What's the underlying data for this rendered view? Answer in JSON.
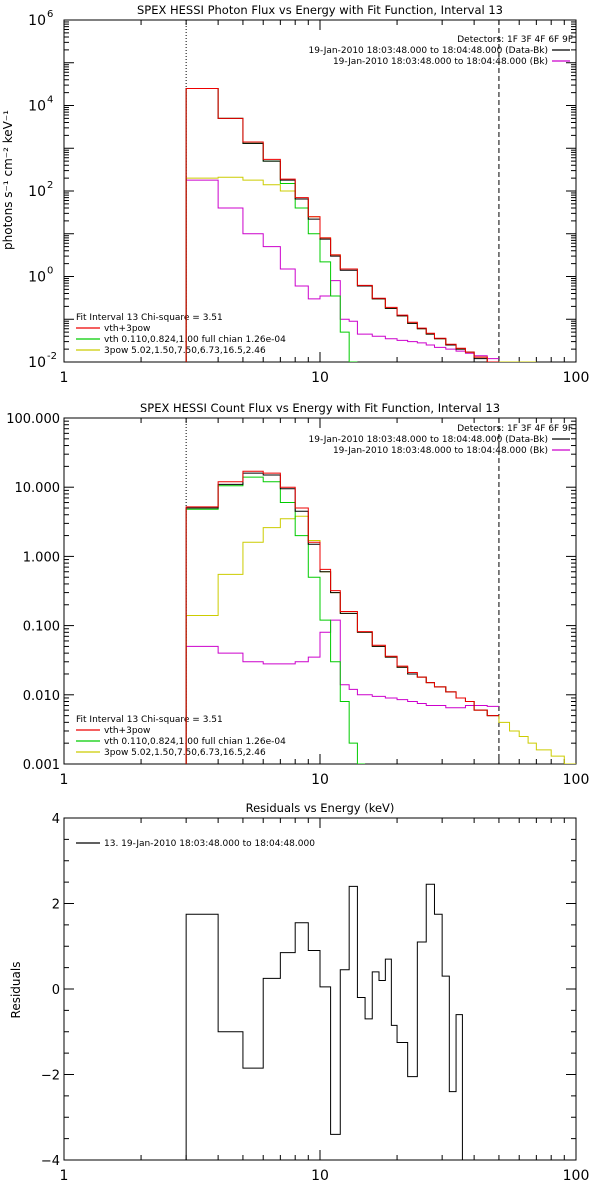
{
  "chart_data": [
    {
      "type": "line",
      "title": "SPEX HESSI Photon Flux vs Energy with Fit Function, Interval 13",
      "ylabel": "photons s⁻¹ cm⁻² keV⁻¹",
      "xlabel": "",
      "x_scale": "log",
      "y_scale": "log",
      "xlim": [
        1,
        100
      ],
      "ylim": [
        0.01,
        1000000
      ],
      "x_ticks": [
        "1",
        "10",
        "100"
      ],
      "y_ticks": [
        {
          "value": 0.01,
          "base": "10",
          "exp": "-2"
        },
        {
          "value": 1,
          "base": "10",
          "exp": "0"
        },
        {
          "value": 100,
          "base": "10",
          "exp": "2"
        },
        {
          "value": 10000,
          "base": "10",
          "exp": "4"
        },
        {
          "value": 1000000,
          "base": "10",
          "exp": "6"
        }
      ],
      "legend_top_right": {
        "heading": "Detectors: 1F 3F 4F 6F 9F",
        "entries": [
          {
            "text": "19-Jan-2010 18:03:48.000 to 18:04:48.000 (Data-Bk)",
            "color": "#000000"
          },
          {
            "text": "19-Jan-2010 18:03:48.000 to 18:04:48.000 (Bk)",
            "color": "#cc00cc"
          }
        ]
      },
      "legend_bottom_left": {
        "heading": "Fit Interval 13    Chi-square = 3.51",
        "entries": [
          {
            "text": "vth+3pow",
            "color": "#ee0000"
          },
          {
            "text": "vth 0.110,0.824,1.00  full chian 1.26e-04",
            "color": "#00cc00"
          },
          {
            "text": "3pow 5.02,1.50,7.50,6.73,16.5,2.46",
            "color": "#cccc00"
          }
        ]
      },
      "vlines": [
        {
          "x": 3,
          "style": "dotted"
        },
        {
          "x": 50,
          "style": "dashed"
        }
      ],
      "series": [
        {
          "color": "#000000",
          "edges": [
            3,
            4,
            5,
            6,
            7,
            8,
            9,
            10,
            11,
            12,
            14,
            16,
            18,
            20,
            22,
            24,
            26,
            28,
            31,
            34,
            37,
            40,
            45,
            50
          ],
          "values": [
            25000,
            5000,
            1300,
            500,
            180,
            65,
            22,
            7.5,
            3,
            1.4,
            0.6,
            0.3,
            0.18,
            0.12,
            0.08,
            0.06,
            0.045,
            0.035,
            0.025,
            0.02,
            0.017,
            0.012,
            0.009
          ]
        },
        {
          "color": "#ee0000",
          "edges": [
            3,
            4,
            5,
            6,
            7,
            8,
            9,
            10,
            11,
            12,
            14,
            16,
            18,
            20,
            22,
            24,
            26,
            28,
            31,
            34,
            37,
            40,
            45,
            50
          ],
          "values": [
            25000,
            5000,
            1400,
            550,
            190,
            70,
            25,
            8,
            3.2,
            1.5,
            0.62,
            0.31,
            0.19,
            0.125,
            0.085,
            0.062,
            0.047,
            0.036,
            0.026,
            0.021,
            0.017,
            0.013,
            0.01
          ]
        },
        {
          "color": "#00cc00",
          "edges": [
            3,
            4,
            5,
            6,
            7,
            8,
            9,
            10,
            11,
            12,
            13,
            14
          ],
          "values": [
            25000,
            5000,
            1300,
            500,
            150,
            40,
            10,
            2.2,
            0.35,
            0.05,
            0.006
          ]
        },
        {
          "color": "#cccc00",
          "edges": [
            3,
            4,
            5,
            6,
            7,
            8,
            9,
            10,
            11,
            12,
            14,
            16,
            18,
            20,
            22,
            24,
            26,
            28,
            31,
            34,
            37,
            40,
            45,
            50,
            55,
            60,
            65,
            70
          ],
          "values": [
            200,
            210,
            180,
            140,
            100,
            65,
            25,
            8,
            3.2,
            1.5,
            0.6,
            0.3,
            0.18,
            0.12,
            0.08,
            0.06,
            0.045,
            0.035,
            0.025,
            0.02,
            0.017,
            0.013,
            0.01,
            0.008,
            0.0065,
            0.0055,
            0.0045
          ]
        },
        {
          "color": "#cc00cc",
          "edges": [
            3,
            4,
            5,
            6,
            7,
            8,
            9,
            10,
            11,
            12,
            13,
            14,
            16,
            18,
            20,
            22,
            24,
            26,
            28,
            31,
            34,
            37,
            40,
            45,
            50
          ],
          "values": [
            180,
            40,
            10,
            5,
            1.5,
            0.6,
            0.3,
            0.35,
            0.8,
            0.1,
            0.09,
            0.045,
            0.04,
            0.035,
            0.032,
            0.03,
            0.028,
            0.025,
            0.022,
            0.02,
            0.018,
            0.016,
            0.014,
            0.012
          ]
        }
      ]
    },
    {
      "type": "line",
      "title": "SPEX HESSI Count Flux vs Energy with Fit Function, Interval 13",
      "ylabel": "",
      "xlabel": "",
      "x_scale": "log",
      "y_scale": "log",
      "xlim": [
        1,
        100
      ],
      "ylim": [
        0.001,
        100
      ],
      "x_ticks": [
        "1",
        "10",
        "100"
      ],
      "y_ticks": [
        {
          "value": 0.001,
          "label": "0.001"
        },
        {
          "value": 0.01,
          "label": "0.010"
        },
        {
          "value": 0.1,
          "label": "0.100"
        },
        {
          "value": 1,
          "label": "1.000"
        },
        {
          "value": 10,
          "label": "10.000"
        },
        {
          "value": 100,
          "label": "100.000"
        }
      ],
      "legend_top_right": {
        "heading": "Detectors: 1F 3F 4F 6F 9F",
        "entries": [
          {
            "text": "19-Jan-2010 18:03:48.000 to 18:04:48.000 (Data-Bk)",
            "color": "#000000"
          },
          {
            "text": "19-Jan-2010 18:03:48.000 to 18:04:48.000 (Bk)",
            "color": "#cc00cc"
          }
        ]
      },
      "legend_bottom_left": {
        "heading": "Fit Interval 13    Chi-square = 3.51",
        "entries": [
          {
            "text": "vth+3pow",
            "color": "#ee0000"
          },
          {
            "text": "vth 0.110,0.824,1.00  full chian 1.26e-04",
            "color": "#00cc00"
          },
          {
            "text": "3pow 5.02,1.50,7.50,6.73,16.5,2.46",
            "color": "#cccc00"
          }
        ]
      },
      "vlines": [
        {
          "x": 3,
          "style": "dotted"
        },
        {
          "x": 50,
          "style": "dashed"
        }
      ],
      "series": [
        {
          "color": "#000000",
          "edges": [
            3,
            4,
            5,
            6,
            7,
            8,
            9,
            10,
            11,
            12,
            14,
            16,
            18,
            20,
            22,
            24,
            26,
            28,
            31,
            34,
            37,
            40,
            45,
            50
          ],
          "values": [
            5,
            11,
            16,
            15,
            9.5,
            4.5,
            1.5,
            0.6,
            0.3,
            0.15,
            0.08,
            0.05,
            0.035,
            0.025,
            0.02,
            0.018,
            0.015,
            0.013,
            0.011,
            0.009,
            0.008,
            0.006,
            0.005
          ]
        },
        {
          "color": "#ee0000",
          "edges": [
            3,
            4,
            5,
            6,
            7,
            8,
            9,
            10,
            11,
            12,
            14,
            16,
            18,
            20,
            22,
            24,
            26,
            28,
            31,
            34,
            37,
            40,
            45,
            50
          ],
          "values": [
            5.2,
            12,
            17,
            16,
            10,
            5,
            1.6,
            0.65,
            0.32,
            0.16,
            0.082,
            0.052,
            0.036,
            0.026,
            0.021,
            0.018,
            0.015,
            0.013,
            0.011,
            0.009,
            0.008,
            0.006,
            0.005
          ]
        },
        {
          "color": "#00cc00",
          "edges": [
            3,
            4,
            5,
            6,
            7,
            8,
            9,
            10,
            11,
            12,
            13,
            14,
            15
          ],
          "values": [
            4.8,
            10.5,
            14,
            12,
            6,
            2,
            0.5,
            0.12,
            0.03,
            0.008,
            0.002,
            0.0008
          ]
        },
        {
          "color": "#cccc00",
          "edges": [
            3,
            4,
            5,
            6,
            7,
            8,
            9,
            10,
            11,
            12,
            14,
            16,
            18,
            20,
            22,
            24,
            26,
            28,
            31,
            34,
            37,
            40,
            45,
            50,
            55,
            60,
            65,
            70,
            80,
            90,
            100
          ],
          "values": [
            0.14,
            0.55,
            1.6,
            2.6,
            3.5,
            3.8,
            1.7,
            0.6,
            0.3,
            0.15,
            0.08,
            0.05,
            0.035,
            0.025,
            0.02,
            0.018,
            0.015,
            0.013,
            0.011,
            0.009,
            0.008,
            0.006,
            0.005,
            0.004,
            0.003,
            0.0025,
            0.002,
            0.0016,
            0.0013,
            0.001
          ]
        },
        {
          "color": "#cc00cc",
          "edges": [
            3,
            4,
            5,
            6,
            7,
            8,
            9,
            10,
            11,
            12,
            13,
            14,
            16,
            18,
            20,
            22,
            24,
            26,
            28,
            31,
            34,
            37,
            40,
            45,
            50
          ],
          "values": [
            0.05,
            0.04,
            0.03,
            0.028,
            0.028,
            0.03,
            0.035,
            0.08,
            0.12,
            0.014,
            0.012,
            0.01,
            0.0095,
            0.009,
            0.0085,
            0.008,
            0.0075,
            0.007,
            0.007,
            0.0065,
            0.0065,
            0.007,
            0.007,
            0.0068
          ]
        }
      ]
    },
    {
      "type": "line",
      "title": "Residuals vs Energy (keV)",
      "ylabel": "Residuals",
      "xlabel": "",
      "x_scale": "log",
      "y_scale": "linear",
      "xlim": [
        1,
        100
      ],
      "ylim": [
        -4,
        4
      ],
      "x_ticks": [
        "1",
        "10",
        "100"
      ],
      "y_ticks": [
        {
          "value": -4,
          "label": "−4"
        },
        {
          "value": -2,
          "label": "−2"
        },
        {
          "value": 0,
          "label": "0"
        },
        {
          "value": 2,
          "label": "2"
        },
        {
          "value": 4,
          "label": "4"
        }
      ],
      "legend": {
        "text": "13. 19-Jan-2010 18:03:48.000 to 18:04:48.000",
        "color": "#000000"
      },
      "series": [
        {
          "color": "#000000",
          "drop_ends": true,
          "edges": [
            3,
            4,
            5,
            6,
            7,
            8,
            9,
            10,
            11,
            12,
            13,
            14,
            15,
            16,
            17,
            18,
            19,
            20,
            22,
            24,
            26,
            28,
            30,
            32,
            34,
            36,
            38,
            40,
            45,
            50
          ],
          "values": [
            1.75,
            -1.0,
            -1.85,
            0.25,
            0.85,
            1.55,
            0.9,
            0.05,
            -3.4,
            0.45,
            2.4,
            -0.2,
            -0.7,
            0.4,
            0.2,
            0.7,
            -0.85,
            -1.25,
            -2.05,
            1.1,
            2.45,
            1.75,
            0.3,
            -2.4,
            -0.6,
            -4.0,
            -4.0,
            -4.0,
            -4.0
          ]
        }
      ]
    }
  ]
}
